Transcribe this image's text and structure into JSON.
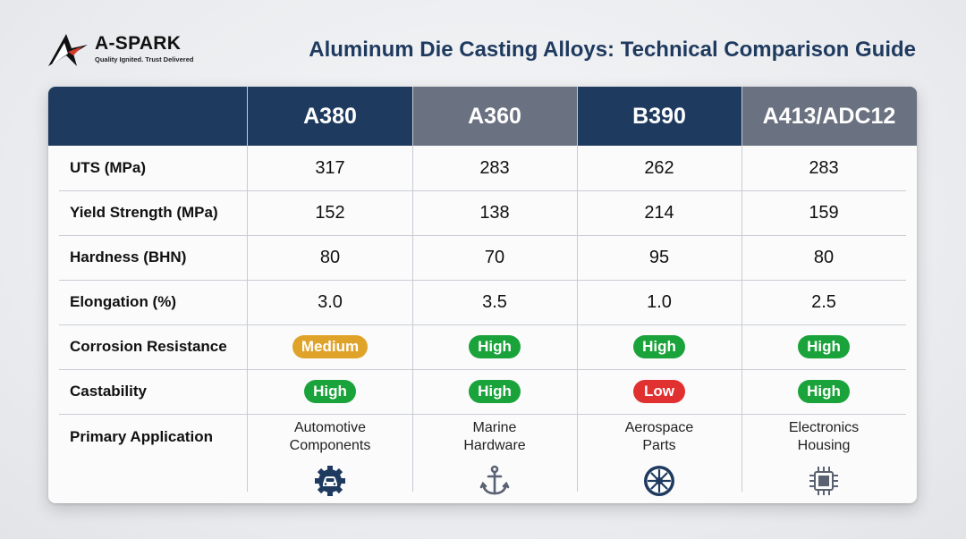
{
  "brand": {
    "name": "A-SPARK",
    "tagline": "Quality Ignited. Trust Delivered"
  },
  "title": "Aluminum Die Casting Alloys: Technical Comparison Guide",
  "colors": {
    "navy": "#1e3a5f",
    "slate": "#6a7180",
    "high": "#1aa33a",
    "medium": "#e0a32a",
    "low": "#e03030"
  },
  "table": {
    "columns": [
      "A380",
      "A360",
      "B390",
      "A413/ADC12"
    ],
    "rows": {
      "uts": {
        "label": "UTS (MPa)",
        "values": [
          "317",
          "283",
          "262",
          "283"
        ]
      },
      "yield": {
        "label": "Yield Strength (MPa)",
        "values": [
          "152",
          "138",
          "214",
          "159"
        ]
      },
      "hardness": {
        "label": "Hardness (BHN)",
        "values": [
          "80",
          "70",
          "95",
          "80"
        ]
      },
      "elongation": {
        "label": "Elongation (%)",
        "values": [
          "3.0",
          "3.5",
          "1.0",
          "2.5"
        ]
      },
      "corrosion": {
        "label": "Corrosion Resistance",
        "values": [
          "Medium",
          "High",
          "High",
          "High"
        ]
      },
      "castability": {
        "label": "Castability",
        "values": [
          "High",
          "High",
          "Low",
          "High"
        ]
      },
      "application": {
        "label": "Primary Application",
        "values": [
          {
            "line1": "Automotive",
            "line2": "Components",
            "icon": "car-gear-icon"
          },
          {
            "line1": "Marine",
            "line2": "Hardware",
            "icon": "anchor-icon"
          },
          {
            "line1": "Aerospace",
            "line2": "Parts",
            "icon": "turbine-icon"
          },
          {
            "line1": "Electronics",
            "line2": "Housing",
            "icon": "chip-icon"
          }
        ]
      }
    }
  }
}
